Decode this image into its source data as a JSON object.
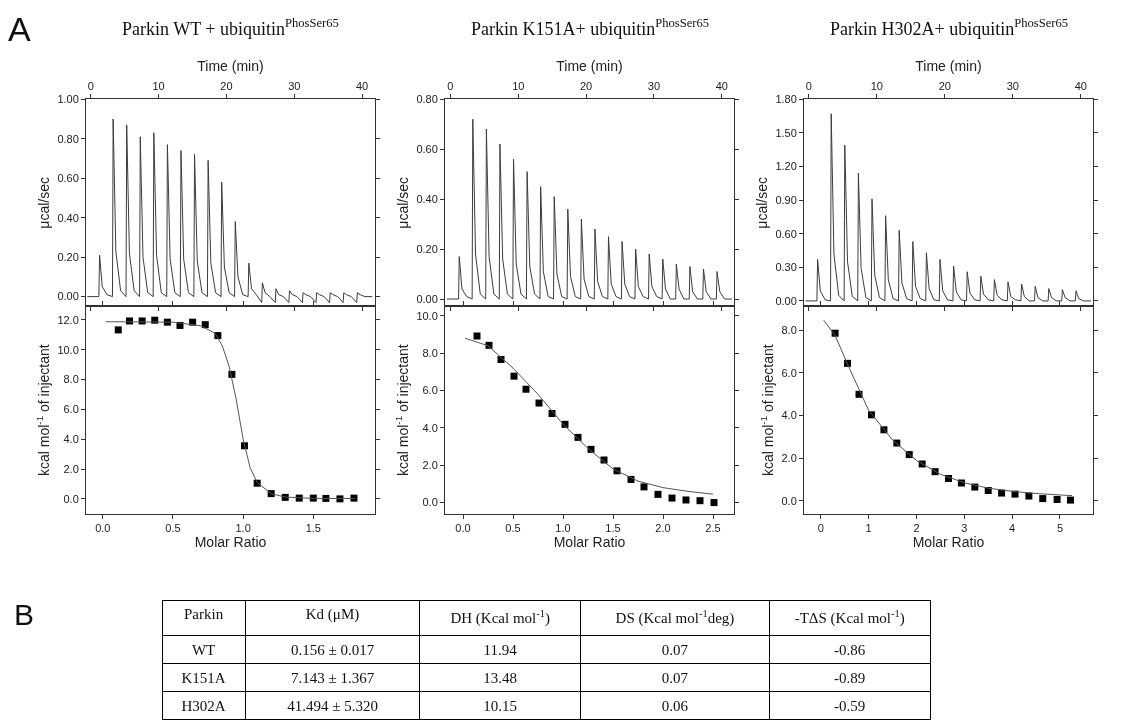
{
  "chart_data": [
    {
      "type": "line",
      "title": "Parkin WT + ubiquitin$^{PhosSer65}$",
      "annotations": [
        "A"
      ],
      "xlabel": "Time (min)",
      "ylabel": "μcal/sec",
      "marker": "none",
      "xlim": [
        -0.7,
        41.9
      ],
      "xticks": [
        0,
        10,
        20,
        30,
        40
      ],
      "ylim": [
        -0.05,
        1.0
      ],
      "yticks": [
        {
          "value": 0,
          "label": "0.00"
        },
        {
          "value": 0.2,
          "label": "0.20"
        },
        {
          "value": 0.4,
          "label": "0.40"
        },
        {
          "value": 0.6,
          "label": "0.60"
        },
        {
          "value": 0.8,
          "label": "0.80"
        },
        {
          "value": 1.0,
          "label": "1.00"
        }
      ],
      "series": [
        {
          "color": "#3c3c3c",
          "x": [
            -0.5,
            1.2,
            1.3,
            1.7,
            2.4,
            3.2,
            3.3,
            3.7,
            4.4,
            5.2,
            5.3,
            5.7,
            6.4,
            7.2,
            7.3,
            7.7,
            8.4,
            9.2,
            9.3,
            9.7,
            10.4,
            11.2,
            11.3,
            11.7,
            12.4,
            13.2,
            13.3,
            13.7,
            14.4,
            15.2,
            15.3,
            15.7,
            16.4,
            17.2,
            17.3,
            17.7,
            18.4,
            19.2,
            19.3,
            19.7,
            20.4,
            21.2,
            21.3,
            21.7,
            22.4,
            23.2,
            23.3,
            23.7,
            24.4,
            25.2,
            25.3,
            25.7,
            26.4,
            27.2,
            27.3,
            27.7,
            28.4,
            29.2,
            29.3,
            29.7,
            30.4,
            31.2,
            31.3,
            31.7,
            32.4,
            33.2,
            33.3,
            33.7,
            34.4,
            35.2,
            35.3,
            35.7,
            36.4,
            37.2,
            37.3,
            37.7,
            38.4,
            39.2,
            39.3,
            39.7,
            40.4,
            41.5
          ],
          "values": [
            0,
            0,
            0.21,
            0.05,
            0.01,
            0,
            0.9,
            0.23,
            0.03,
            0,
            0.87,
            0.22,
            0.03,
            0,
            0.81,
            0.2,
            0.02,
            0,
            0.83,
            0.21,
            0.02,
            0,
            0.77,
            0.19,
            0.02,
            0,
            0.74,
            0.19,
            0.02,
            0,
            0.72,
            0.18,
            0.02,
            0,
            0.69,
            0.17,
            0.02,
            0,
            0.58,
            0.15,
            0.02,
            0,
            0.38,
            0.1,
            0.01,
            0,
            0.17,
            0.04,
            0.01,
            -0.03,
            0.07,
            0.02,
            0,
            -0.03,
            0.04,
            0.01,
            0,
            -0.03,
            0.03,
            0.01,
            0,
            -0.03,
            0.02,
            0.01,
            0,
            -0.03,
            0.02,
            0.01,
            0,
            -0.03,
            0.02,
            0.01,
            0,
            -0.03,
            0.02,
            0.01,
            0,
            -0.03,
            0.02,
            0.01,
            0,
            0
          ]
        }
      ]
    },
    {
      "type": "line",
      "title": "Parkin K151A+ ubiquitin$^{PhosSer65}$",
      "xlabel": "Time (min)",
      "ylabel": "μcal/sec",
      "marker": "none",
      "xlim": [
        -0.8,
        41.8
      ],
      "xticks": [
        0,
        10,
        20,
        30,
        40
      ],
      "ylim": [
        -0.03,
        0.8
      ],
      "yticks": [
        {
          "value": 0,
          "label": "0.00"
        },
        {
          "value": 0.2,
          "label": "0.20"
        },
        {
          "value": 0.4,
          "label": "0.40"
        },
        {
          "value": 0.6,
          "label": "0.60"
        },
        {
          "value": 0.8,
          "label": "0.80"
        }
      ],
      "series": [
        {
          "color": "#3c3c3c",
          "x": [
            -0.5,
            1.2,
            1.3,
            1.7,
            2.4,
            3.2,
            3.3,
            3.7,
            4.4,
            5.2,
            5.3,
            5.7,
            6.4,
            7.2,
            7.3,
            7.7,
            8.4,
            9.2,
            9.3,
            9.7,
            10.4,
            11.2,
            11.3,
            11.7,
            12.4,
            13.2,
            13.3,
            13.7,
            14.4,
            15.2,
            15.3,
            15.7,
            16.4,
            17.2,
            17.3,
            17.7,
            18.4,
            19.2,
            19.3,
            19.7,
            20.4,
            21.2,
            21.3,
            21.7,
            22.4,
            23.2,
            23.3,
            23.7,
            24.4,
            25.2,
            25.3,
            25.7,
            26.4,
            27.2,
            27.3,
            27.7,
            28.4,
            29.2,
            29.3,
            29.7,
            30.4,
            31.2,
            31.3,
            31.7,
            32.4,
            33.2,
            33.3,
            33.7,
            34.4,
            35.2,
            35.3,
            35.7,
            36.4,
            37.2,
            37.3,
            37.7,
            38.4,
            39.2,
            39.3,
            39.7,
            40.4,
            41.5
          ],
          "values": [
            0,
            0,
            0.17,
            0.04,
            0.01,
            0,
            0.72,
            0.18,
            0.02,
            0,
            0.68,
            0.17,
            0.02,
            0,
            0.62,
            0.16,
            0.02,
            0,
            0.56,
            0.14,
            0.02,
            0,
            0.51,
            0.13,
            0.02,
            0,
            0.45,
            0.11,
            0.01,
            0,
            0.41,
            0.1,
            0.01,
            0,
            0.36,
            0.09,
            0.01,
            0,
            0.32,
            0.08,
            0.01,
            0,
            0.28,
            0.07,
            0.01,
            0,
            0.25,
            0.06,
            0.01,
            0,
            0.23,
            0.06,
            0.01,
            0,
            0.2,
            0.05,
            0.01,
            0,
            0.18,
            0.05,
            0.01,
            0,
            0.16,
            0.04,
            0,
            0,
            0.14,
            0.04,
            0,
            0,
            0.13,
            0.03,
            0,
            0,
            0.12,
            0.03,
            0,
            0,
            0.11,
            0.03,
            0,
            0
          ]
        }
      ]
    },
    {
      "type": "line",
      "title": "Parkin H302A+ ubiquitin$^{PhosSer65}$",
      "xlabel": "Time (min)",
      "ylabel": "μcal/sec",
      "marker": "none",
      "xlim": [
        -0.7,
        41.8
      ],
      "xticks": [
        0,
        10,
        20,
        30,
        40
      ],
      "ylim": [
        -0.05,
        1.8
      ],
      "yticks": [
        {
          "value": 0,
          "label": "0.00"
        },
        {
          "value": 0.3,
          "label": "0.30"
        },
        {
          "value": 0.6,
          "label": "0.60"
        },
        {
          "value": 0.9,
          "label": "0.90"
        },
        {
          "value": 1.2,
          "label": "1.20"
        },
        {
          "value": 1.5,
          "label": "1.50"
        },
        {
          "value": 1.8,
          "label": "1.80"
        }
      ],
      "series": [
        {
          "color": "#3c3c3c",
          "x": [
            -0.5,
            1.2,
            1.3,
            1.7,
            2.4,
            3.2,
            3.3,
            3.7,
            4.4,
            5.2,
            5.3,
            5.7,
            6.4,
            7.2,
            7.3,
            7.7,
            8.4,
            9.2,
            9.3,
            9.7,
            10.4,
            11.2,
            11.3,
            11.7,
            12.4,
            13.2,
            13.3,
            13.7,
            14.4,
            15.2,
            15.3,
            15.7,
            16.4,
            17.2,
            17.3,
            17.7,
            18.4,
            19.2,
            19.3,
            19.7,
            20.4,
            21.2,
            21.3,
            21.7,
            22.4,
            23.2,
            23.3,
            23.7,
            24.4,
            25.2,
            25.3,
            25.7,
            26.4,
            27.2,
            27.3,
            27.7,
            28.4,
            29.2,
            29.3,
            29.7,
            30.4,
            31.2,
            31.3,
            31.7,
            32.4,
            33.2,
            33.3,
            33.7,
            34.4,
            35.2,
            35.3,
            35.7,
            36.4,
            37.2,
            37.3,
            37.7,
            38.4,
            39.2,
            39.3,
            39.7,
            40.4,
            41.5
          ],
          "values": [
            0,
            0,
            0.37,
            0.09,
            0.01,
            0,
            1.67,
            0.42,
            0.05,
            0,
            1.39,
            0.35,
            0.04,
            0,
            1.14,
            0.29,
            0.03,
            0,
            0.91,
            0.23,
            0.03,
            0,
            0.76,
            0.19,
            0.02,
            0,
            0.63,
            0.16,
            0.02,
            0,
            0.53,
            0.13,
            0.02,
            0,
            0.43,
            0.11,
            0.01,
            0,
            0.37,
            0.09,
            0.01,
            0,
            0.31,
            0.08,
            0.01,
            0,
            0.26,
            0.07,
            0.01,
            0,
            0.22,
            0.06,
            0.01,
            0,
            0.19,
            0.05,
            0.01,
            0,
            0.17,
            0.04,
            0.01,
            0,
            0.15,
            0.04,
            0,
            0,
            0.13,
            0.03,
            0,
            0,
            0.11,
            0.03,
            0,
            0,
            0.1,
            0.03,
            0,
            0,
            0.09,
            0.02,
            0,
            0
          ]
        }
      ]
    },
    {
      "type": "scatter",
      "xlabel": "Molar Ratio",
      "ylabel": "kcal mol$^{-1}$ of injectant",
      "xlim": [
        -0.12,
        1.94
      ],
      "xticks": [
        {
          "value": 0,
          "label": "0.0"
        },
        {
          "value": 0.5,
          "label": "0.5"
        },
        {
          "value": 1.0,
          "label": "1.0"
        },
        {
          "value": 1.5,
          "label": "1.5"
        }
      ],
      "ylim": [
        -1.0,
        12.9
      ],
      "yticks": [
        {
          "value": 0,
          "label": "0.0"
        },
        {
          "value": 2,
          "label": "2.0"
        },
        {
          "value": 4,
          "label": "4.0"
        },
        {
          "value": 6,
          "label": "6.0"
        },
        {
          "value": 8,
          "label": "8.0"
        },
        {
          "value": 10,
          "label": "10.0"
        },
        {
          "value": 12,
          "label": "12.0"
        }
      ],
      "series": [
        {
          "type": "scatter",
          "marker": "square",
          "color": "#000000",
          "x": [
            0.11,
            0.19,
            0.28,
            0.37,
            0.46,
            0.55,
            0.64,
            0.73,
            0.82,
            0.92,
            1.01,
            1.1,
            1.2,
            1.3,
            1.4,
            1.5,
            1.59,
            1.69,
            1.79
          ],
          "values": [
            11.33,
            11.93,
            11.93,
            11.98,
            11.85,
            11.63,
            11.85,
            11.68,
            10.95,
            8.35,
            3.56,
            1.05,
            0.35,
            0.1,
            0.05,
            0.05,
            0.03,
            0.0,
            0.05
          ]
        },
        {
          "type": "line",
          "marker": "none",
          "color": "#555555",
          "x": [
            0.02,
            0.5,
            0.7,
            0.8,
            0.85,
            0.9,
            0.95,
            1.0,
            1.05,
            1.1,
            1.2,
            1.3,
            1.5,
            1.8
          ],
          "values": [
            11.88,
            11.85,
            11.6,
            11.1,
            10.3,
            8.9,
            6.7,
            4.0,
            2.1,
            1.1,
            0.35,
            0.12,
            0.03,
            0.02
          ]
        }
      ]
    },
    {
      "type": "scatter",
      "xlabel": "Molar Ratio",
      "ylabel": "kcal mol$^{-1}$ of injectant",
      "xlim": [
        -0.18,
        2.71
      ],
      "xticks": [
        {
          "value": 0,
          "label": "0.0"
        },
        {
          "value": 0.5,
          "label": "0.5"
        },
        {
          "value": 1.0,
          "label": "1.0"
        },
        {
          "value": 1.5,
          "label": "1.5"
        },
        {
          "value": 2.0,
          "label": "2.0"
        },
        {
          "value": 2.5,
          "label": "2.5"
        }
      ],
      "ylim": [
        -0.6,
        10.5
      ],
      "yticks": [
        {
          "value": 0,
          "label": "0.0"
        },
        {
          "value": 2,
          "label": "2.0"
        },
        {
          "value": 4,
          "label": "4.0"
        },
        {
          "value": 6,
          "label": "6.0"
        },
        {
          "value": 8,
          "label": "8.0"
        },
        {
          "value": 10,
          "label": "10.0"
        }
      ],
      "series": [
        {
          "type": "scatter",
          "marker": "square",
          "color": "#000000",
          "x": [
            0.14,
            0.26,
            0.38,
            0.51,
            0.63,
            0.76,
            0.89,
            1.02,
            1.15,
            1.28,
            1.41,
            1.54,
            1.68,
            1.81,
            1.95,
            2.09,
            2.23,
            2.37,
            2.51
          ],
          "values": [
            8.92,
            8.42,
            7.66,
            6.77,
            6.07,
            5.33,
            4.77,
            4.19,
            3.49,
            2.85,
            2.28,
            1.7,
            1.24,
            0.84,
            0.44,
            0.24,
            0.14,
            0.1,
            0.0
          ]
        },
        {
          "type": "line",
          "marker": "none",
          "color": "#555555",
          "x": [
            0.02,
            0.25,
            0.5,
            0.75,
            1.0,
            1.25,
            1.5,
            1.75,
            2.0,
            2.25,
            2.5
          ],
          "values": [
            8.8,
            8.4,
            7.2,
            5.8,
            4.2,
            2.9,
            1.8,
            1.15,
            0.8,
            0.6,
            0.45
          ]
        }
      ]
    },
    {
      "type": "scatter",
      "xlabel": "Molar Ratio",
      "ylabel": "kcal mol$^{-1}$ of injectant",
      "xlim": [
        -0.35,
        5.69
      ],
      "xticks": [
        0,
        1,
        2,
        3,
        4,
        5
      ],
      "ylim": [
        -0.6,
        9.1
      ],
      "yticks": [
        {
          "value": 0,
          "label": "0.0"
        },
        {
          "value": 2,
          "label": "2.0"
        },
        {
          "value": 4,
          "label": "4.0"
        },
        {
          "value": 6,
          "label": "6.0"
        },
        {
          "value": 8,
          "label": "8.0"
        }
      ],
      "series": [
        {
          "type": "scatter",
          "marker": "square",
          "color": "#000000",
          "x": [
            0.3,
            0.56,
            0.8,
            1.06,
            1.32,
            1.59,
            1.85,
            2.12,
            2.39,
            2.67,
            2.94,
            3.22,
            3.5,
            3.78,
            4.06,
            4.35,
            4.64,
            4.94,
            5.22
          ],
          "values": [
            7.85,
            6.44,
            4.99,
            4.03,
            3.33,
            2.71,
            2.17,
            1.73,
            1.37,
            1.05,
            0.84,
            0.65,
            0.49,
            0.37,
            0.32,
            0.23,
            0.11,
            0.07,
            0.04
          ]
        },
        {
          "type": "line",
          "marker": "none",
          "color": "#555555",
          "x": [
            0.06,
            0.3,
            0.6,
            1.0,
            1.5,
            2.0,
            2.5,
            3.0,
            3.5,
            4.0,
            4.5,
            5.0,
            5.25
          ],
          "values": [
            8.46,
            7.75,
            6.2,
            4.25,
            2.85,
            1.9,
            1.25,
            0.85,
            0.6,
            0.45,
            0.35,
            0.28,
            0.25
          ]
        }
      ]
    },
    {
      "type": "other",
      "title": "B",
      "categories": [
        "Parkin",
        "Kd (μM)",
        "DH (Kcal mol$^{-1}$)",
        "DS (Kcal mol$^{-1}$deg)",
        "-TΔS (Kcal mol$^{-1}$)"
      ],
      "cell_labels": [
        [
          "WT",
          "0.156 ± 0.017",
          "11.94",
          "0.07",
          "-0.86"
        ],
        [
          "K151A",
          "7.143 ± 1.367",
          "13.48",
          "0.07",
          "-0.89"
        ],
        [
          "H302A",
          "41.494 ± 5.320",
          "10.15",
          "0.06",
          "-0.59"
        ]
      ]
    }
  ]
}
